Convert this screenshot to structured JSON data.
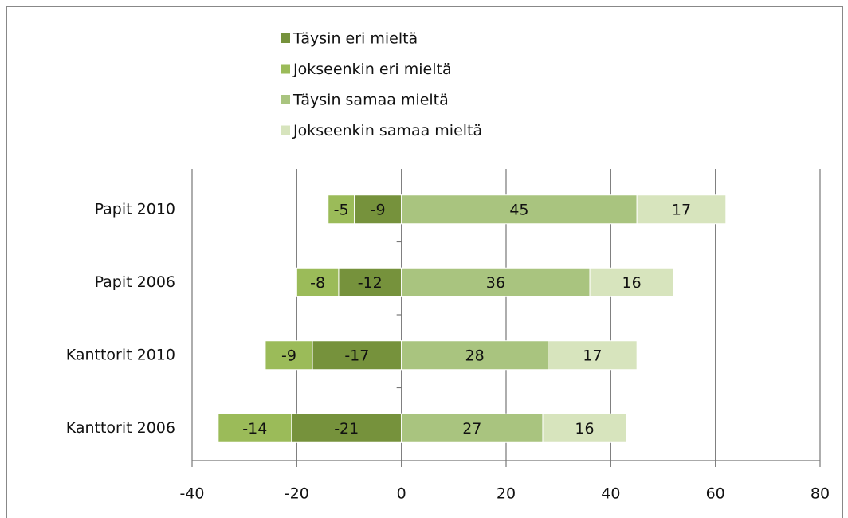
{
  "chart_data": {
    "type": "diverging-bar",
    "categories": [
      "Papit 2010",
      "Papit 2006",
      "Kanttorit 2010",
      "Kanttorit 2006"
    ],
    "series": [
      {
        "name": "Täysin eri mieltä",
        "color": "#76923c",
        "values": [
          -9,
          -12,
          -17,
          -21
        ]
      },
      {
        "name": "Jokseenkin eri mieltä",
        "color": "#9bbb59",
        "values": [
          -5,
          -8,
          -9,
          -14
        ]
      },
      {
        "name": "Täysin samaa mieltä",
        "color": "#a9c47f",
        "values": [
          45,
          36,
          28,
          27
        ]
      },
      {
        "name": "Jokseenkin samaa mieltä",
        "color": "#d7e4bd",
        "values": [
          17,
          16,
          17,
          16
        ]
      }
    ],
    "xlim": [
      -40,
      80
    ],
    "xticks": [
      -40,
      -20,
      0,
      20,
      40,
      60,
      80
    ],
    "grid": true,
    "legend": "top"
  }
}
